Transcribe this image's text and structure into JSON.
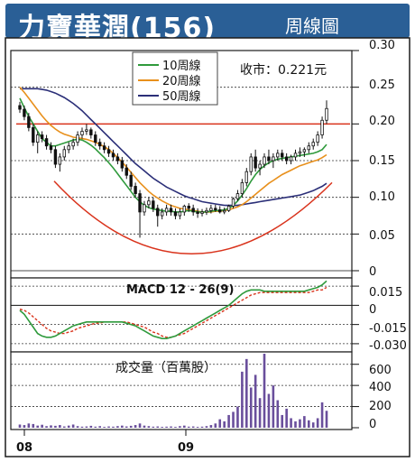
{
  "title": {
    "main": "力寶華潤(156)",
    "sub": "周線圖"
  },
  "colors": {
    "title_bg": "#2a5f96",
    "candle": "#111111",
    "ma10": "#2f9a3c",
    "ma20": "#e8901c",
    "ma50": "#2b2f78",
    "resistance": "#d9331c",
    "arc": "#d9331c",
    "dif": "#2f9a3c",
    "dea": "#d9331c",
    "volume": "#6a4f9c"
  },
  "chart_data": [
    {
      "type": "candlestick",
      "name": "price",
      "close_label": "收市：0.221元",
      "legend": [
        "10周線",
        "20周線",
        "50周線"
      ],
      "legend_placement": "top-left",
      "y_ticks": [
        "0.30",
        "0.25",
        "0.20",
        "0.15",
        "0.10",
        "0.05",
        "0"
      ],
      "ylim": [
        0,
        0.3
      ],
      "resistance_level": 0.2,
      "x_ticks": [
        "08",
        "09"
      ],
      "candles": [
        [
          0.225,
          0.23,
          0.215,
          0.22
        ],
        [
          0.22,
          0.225,
          0.205,
          0.21
        ],
        [
          0.21,
          0.215,
          0.19,
          0.195
        ],
        [
          0.195,
          0.2,
          0.17,
          0.175
        ],
        [
          0.175,
          0.19,
          0.16,
          0.185
        ],
        [
          0.185,
          0.19,
          0.175,
          0.18
        ],
        [
          0.18,
          0.185,
          0.165,
          0.17
        ],
        [
          0.17,
          0.175,
          0.16,
          0.165
        ],
        [
          0.165,
          0.17,
          0.14,
          0.145
        ],
        [
          0.145,
          0.16,
          0.135,
          0.155
        ],
        [
          0.155,
          0.17,
          0.15,
          0.165
        ],
        [
          0.165,
          0.175,
          0.16,
          0.17
        ],
        [
          0.17,
          0.18,
          0.165,
          0.175
        ],
        [
          0.175,
          0.19,
          0.17,
          0.185
        ],
        [
          0.185,
          0.195,
          0.18,
          0.19
        ],
        [
          0.19,
          0.2,
          0.185,
          0.192
        ],
        [
          0.192,
          0.195,
          0.18,
          0.185
        ],
        [
          0.185,
          0.19,
          0.17,
          0.175
        ],
        [
          0.175,
          0.18,
          0.165,
          0.17
        ],
        [
          0.17,
          0.175,
          0.16,
          0.165
        ],
        [
          0.165,
          0.17,
          0.155,
          0.16
        ],
        [
          0.16,
          0.165,
          0.15,
          0.155
        ],
        [
          0.155,
          0.16,
          0.145,
          0.15
        ],
        [
          0.15,
          0.155,
          0.135,
          0.14
        ],
        [
          0.14,
          0.145,
          0.125,
          0.13
        ],
        [
          0.13,
          0.135,
          0.11,
          0.115
        ],
        [
          0.115,
          0.12,
          0.1,
          0.105
        ],
        [
          0.105,
          0.11,
          0.045,
          0.08
        ],
        [
          0.08,
          0.095,
          0.075,
          0.09
        ],
        [
          0.09,
          0.1,
          0.085,
          0.095
        ],
        [
          0.095,
          0.1,
          0.08,
          0.085
        ],
        [
          0.085,
          0.09,
          0.06,
          0.075
        ],
        [
          0.075,
          0.085,
          0.07,
          0.08
        ],
        [
          0.08,
          0.09,
          0.075,
          0.085
        ],
        [
          0.085,
          0.09,
          0.075,
          0.08
        ],
        [
          0.08,
          0.085,
          0.07,
          0.075
        ],
        [
          0.075,
          0.085,
          0.07,
          0.08
        ],
        [
          0.08,
          0.09,
          0.075,
          0.088
        ],
        [
          0.088,
          0.092,
          0.08,
          0.085
        ],
        [
          0.085,
          0.09,
          0.075,
          0.08
        ],
        [
          0.08,
          0.085,
          0.072,
          0.078
        ],
        [
          0.078,
          0.084,
          0.074,
          0.08
        ],
        [
          0.08,
          0.086,
          0.076,
          0.082
        ],
        [
          0.082,
          0.09,
          0.078,
          0.085
        ],
        [
          0.085,
          0.09,
          0.08,
          0.083
        ],
        [
          0.083,
          0.088,
          0.078,
          0.08
        ],
        [
          0.08,
          0.086,
          0.077,
          0.082
        ],
        [
          0.082,
          0.09,
          0.08,
          0.088
        ],
        [
          0.088,
          0.1,
          0.085,
          0.098
        ],
        [
          0.098,
          0.11,
          0.095,
          0.105
        ],
        [
          0.105,
          0.125,
          0.1,
          0.12
        ],
        [
          0.12,
          0.14,
          0.115,
          0.135
        ],
        [
          0.135,
          0.16,
          0.13,
          0.155
        ],
        [
          0.155,
          0.165,
          0.135,
          0.14
        ],
        [
          0.14,
          0.15,
          0.13,
          0.145
        ],
        [
          0.145,
          0.16,
          0.14,
          0.155
        ],
        [
          0.155,
          0.165,
          0.145,
          0.15
        ],
        [
          0.15,
          0.16,
          0.14,
          0.155
        ],
        [
          0.155,
          0.165,
          0.15,
          0.16
        ],
        [
          0.16,
          0.165,
          0.15,
          0.155
        ],
        [
          0.155,
          0.16,
          0.145,
          0.15
        ],
        [
          0.15,
          0.158,
          0.145,
          0.155
        ],
        [
          0.155,
          0.165,
          0.15,
          0.16
        ],
        [
          0.16,
          0.168,
          0.155,
          0.162
        ],
        [
          0.162,
          0.168,
          0.155,
          0.165
        ],
        [
          0.165,
          0.175,
          0.16,
          0.17
        ],
        [
          0.17,
          0.18,
          0.165,
          0.175
        ],
        [
          0.175,
          0.19,
          0.17,
          0.185
        ],
        [
          0.185,
          0.21,
          0.18,
          0.205
        ],
        [
          0.205,
          0.232,
          0.2,
          0.221
        ]
      ],
      "ma10": [
        0.235,
        0.222,
        0.21,
        0.2,
        0.19,
        0.18,
        0.175,
        0.17,
        0.17,
        0.172,
        0.174,
        0.176,
        0.178,
        0.179,
        0.178,
        0.175,
        0.171,
        0.166,
        0.16,
        0.154,
        0.147,
        0.14,
        0.132,
        0.124,
        0.116,
        0.108,
        0.1,
        0.094,
        0.089,
        0.086,
        0.084,
        0.083,
        0.082,
        0.081,
        0.081,
        0.08,
        0.08,
        0.081,
        0.082,
        0.081,
        0.08,
        0.08,
        0.08,
        0.081,
        0.082,
        0.082,
        0.083,
        0.085,
        0.089,
        0.095,
        0.103,
        0.112,
        0.122,
        0.131,
        0.138,
        0.143,
        0.147,
        0.15,
        0.152,
        0.153,
        0.154,
        0.155,
        0.156,
        0.157,
        0.158,
        0.159,
        0.16,
        0.162,
        0.165,
        0.172
      ],
      "ma20": [
        0.25,
        0.243,
        0.235,
        0.227,
        0.219,
        0.211,
        0.204,
        0.198,
        0.193,
        0.189,
        0.186,
        0.184,
        0.182,
        0.181,
        0.18,
        0.179,
        0.177,
        0.175,
        0.172,
        0.169,
        0.165,
        0.16,
        0.154,
        0.148,
        0.141,
        0.134,
        0.127,
        0.12,
        0.114,
        0.108,
        0.103,
        0.099,
        0.095,
        0.092,
        0.089,
        0.087,
        0.085,
        0.084,
        0.083,
        0.082,
        0.081,
        0.08,
        0.08,
        0.08,
        0.081,
        0.081,
        0.082,
        0.083,
        0.085,
        0.087,
        0.09,
        0.094,
        0.099,
        0.104,
        0.109,
        0.114,
        0.119,
        0.123,
        0.127,
        0.131,
        0.134,
        0.137,
        0.14,
        0.143,
        0.145,
        0.147,
        0.149,
        0.151,
        0.154,
        0.158
      ],
      "ma50": [
        0.248,
        0.248,
        0.248,
        0.248,
        0.248,
        0.247,
        0.246,
        0.244,
        0.242,
        0.239,
        0.236,
        0.232,
        0.228,
        0.223,
        0.218,
        0.212,
        0.206,
        0.2,
        0.194,
        0.188,
        0.182,
        0.176,
        0.17,
        0.164,
        0.158,
        0.152,
        0.146,
        0.141,
        0.136,
        0.131,
        0.126,
        0.122,
        0.118,
        0.114,
        0.111,
        0.108,
        0.105,
        0.102,
        0.1,
        0.098,
        0.096,
        0.094,
        0.093,
        0.092,
        0.091,
        0.09,
        0.089,
        0.089,
        0.089,
        0.089,
        0.09,
        0.091,
        0.092,
        0.093,
        0.094,
        0.095,
        0.096,
        0.097,
        0.098,
        0.099,
        0.1,
        0.101,
        0.102,
        0.103,
        0.105,
        0.107,
        0.109,
        0.112,
        0.115,
        0.119
      ]
    },
    {
      "type": "line",
      "name": "macd",
      "title": "MACD 12 - 26(9)",
      "y_ticks": [
        "0.015",
        "0",
        "-0.015",
        "-0.030"
      ],
      "ylim": [
        -0.035,
        0.02
      ],
      "dif": [
        -0.004,
        -0.007,
        -0.012,
        -0.017,
        -0.022,
        -0.024,
        -0.025,
        -0.025,
        -0.024,
        -0.022,
        -0.02,
        -0.018,
        -0.016,
        -0.015,
        -0.014,
        -0.013,
        -0.013,
        -0.013,
        -0.013,
        -0.013,
        -0.013,
        -0.013,
        -0.013,
        -0.013,
        -0.014,
        -0.015,
        -0.016,
        -0.018,
        -0.02,
        -0.022,
        -0.024,
        -0.025,
        -0.026,
        -0.026,
        -0.025,
        -0.024,
        -0.022,
        -0.02,
        -0.018,
        -0.016,
        -0.014,
        -0.012,
        -0.01,
        -0.008,
        -0.006,
        -0.004,
        -0.002,
        0.0,
        0.003,
        0.006,
        0.009,
        0.011,
        0.012,
        0.012,
        0.012,
        0.011,
        0.011,
        0.011,
        0.011,
        0.011,
        0.011,
        0.011,
        0.011,
        0.011,
        0.011,
        0.012,
        0.013,
        0.014,
        0.016,
        0.019
      ],
      "dea": [
        -0.003,
        -0.004,
        -0.006,
        -0.009,
        -0.012,
        -0.015,
        -0.018,
        -0.02,
        -0.021,
        -0.022,
        -0.022,
        -0.021,
        -0.02,
        -0.018,
        -0.017,
        -0.016,
        -0.015,
        -0.014,
        -0.014,
        -0.013,
        -0.013,
        -0.013,
        -0.013,
        -0.013,
        -0.013,
        -0.014,
        -0.015,
        -0.016,
        -0.017,
        -0.019,
        -0.021,
        -0.022,
        -0.024,
        -0.025,
        -0.025,
        -0.024,
        -0.023,
        -0.022,
        -0.02,
        -0.018,
        -0.016,
        -0.014,
        -0.012,
        -0.01,
        -0.008,
        -0.006,
        -0.004,
        -0.002,
        0.0,
        0.002,
        0.004,
        0.006,
        0.008,
        0.009,
        0.01,
        0.01,
        0.01,
        0.01,
        0.01,
        0.01,
        0.01,
        0.01,
        0.01,
        0.01,
        0.01,
        0.01,
        0.011,
        0.012,
        0.012,
        0.014
      ]
    },
    {
      "type": "bar",
      "name": "volume",
      "title": "成交量（百萬股）",
      "y_ticks": [
        "600",
        "400",
        "200",
        "0"
      ],
      "ylim": [
        0,
        700
      ],
      "values": [
        30,
        25,
        40,
        35,
        20,
        28,
        15,
        22,
        18,
        25,
        12,
        20,
        30,
        15,
        10,
        12,
        18,
        10,
        15,
        8,
        12,
        10,
        15,
        20,
        12,
        18,
        25,
        40,
        20,
        15,
        10,
        12,
        8,
        10,
        12,
        8,
        15,
        20,
        10,
        12,
        8,
        10,
        15,
        25,
        40,
        80,
        60,
        120,
        150,
        200,
        530,
        650,
        380,
        500,
        280,
        700,
        320,
        400,
        260,
        120,
        180,
        90,
        60,
        80,
        110,
        70,
        50,
        90,
        240,
        160
      ]
    }
  ]
}
